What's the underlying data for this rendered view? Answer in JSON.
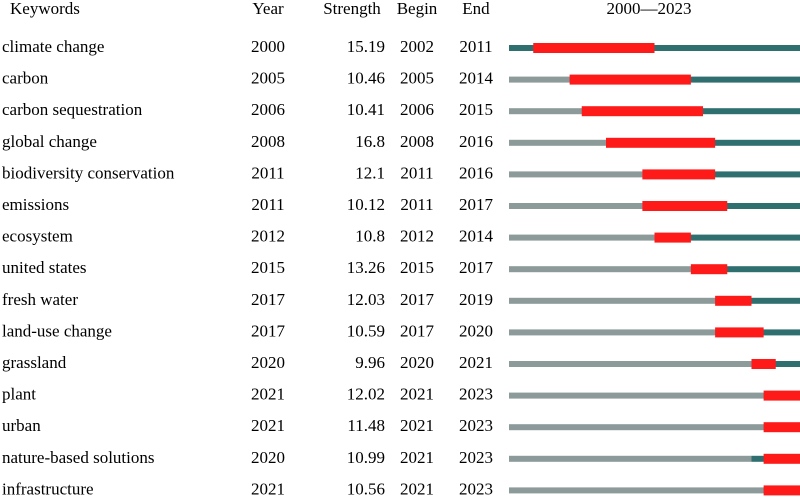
{
  "chart_data": {
    "type": "table",
    "headers": {
      "keyword": "Keywords",
      "year": "Year",
      "strength": "Strength",
      "begin": "Begin",
      "end": "End",
      "timeline": "2000—2023"
    },
    "range": [
      2000,
      2023
    ],
    "colors": {
      "burst": "#ff1a1a",
      "active": "#2f6f6f",
      "inactive": "#8c9a9a"
    },
    "rows": [
      {
        "keyword": "climate change",
        "year": 2000,
        "strength": "15.19",
        "begin": 2002,
        "end": 2011
      },
      {
        "keyword": "carbon",
        "year": 2005,
        "strength": "10.46",
        "begin": 2005,
        "end": 2014
      },
      {
        "keyword": "carbon sequestration",
        "year": 2006,
        "strength": "10.41",
        "begin": 2006,
        "end": 2015
      },
      {
        "keyword": "global change",
        "year": 2008,
        "strength": "16.8",
        "begin": 2008,
        "end": 2016
      },
      {
        "keyword": "biodiversity conservation",
        "year": 2011,
        "strength": "12.1",
        "begin": 2011,
        "end": 2016
      },
      {
        "keyword": "emissions",
        "year": 2011,
        "strength": "10.12",
        "begin": 2011,
        "end": 2017
      },
      {
        "keyword": "ecosystem",
        "year": 2012,
        "strength": "10.8",
        "begin": 2012,
        "end": 2014
      },
      {
        "keyword": "united states",
        "year": 2015,
        "strength": "13.26",
        "begin": 2015,
        "end": 2017
      },
      {
        "keyword": "fresh water",
        "year": 2017,
        "strength": "12.03",
        "begin": 2017,
        "end": 2019
      },
      {
        "keyword": "land-use change",
        "year": 2017,
        "strength": "10.59",
        "begin": 2017,
        "end": 2020
      },
      {
        "keyword": "grassland",
        "year": 2020,
        "strength": "9.96",
        "begin": 2020,
        "end": 2021
      },
      {
        "keyword": "plant",
        "year": 2021,
        "strength": "12.02",
        "begin": 2021,
        "end": 2023
      },
      {
        "keyword": "urban",
        "year": 2021,
        "strength": "11.48",
        "begin": 2021,
        "end": 2023
      },
      {
        "keyword": "nature-based solutions",
        "year": 2020,
        "strength": "10.99",
        "begin": 2021,
        "end": 2023
      },
      {
        "keyword": "infrastructure",
        "year": 2021,
        "strength": "10.56",
        "begin": 2021,
        "end": 2023
      }
    ]
  }
}
